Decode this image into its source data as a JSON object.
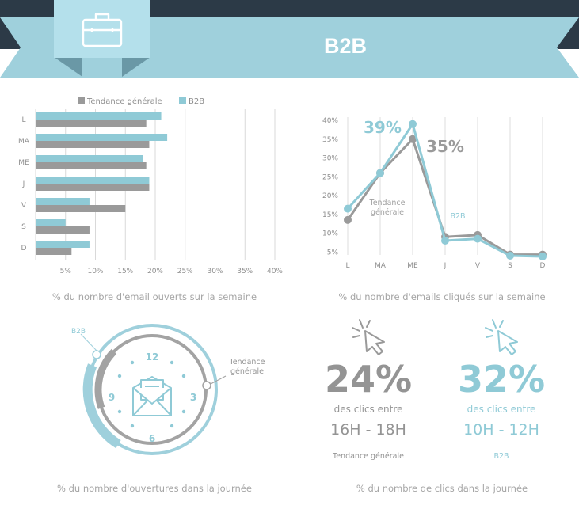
{
  "header": {
    "title": "B2B",
    "icon": "briefcase-icon",
    "colors": {
      "band": "#9fd0dc",
      "dark": "#2c3a47",
      "badge": "#b4e0eb",
      "fold": "#6a98a6"
    }
  },
  "colors": {
    "general": "#9a9a9a",
    "b2b": "#8fcad6"
  },
  "chart_data": [
    {
      "type": "bar",
      "orientation": "horizontal",
      "categories": [
        "L",
        "MA",
        "ME",
        "J",
        "V",
        "S",
        "D"
      ],
      "series": [
        {
          "name": "Tendance générale",
          "values": [
            18.5,
            19,
            18.5,
            19,
            15,
            9,
            6
          ]
        },
        {
          "name": "B2B",
          "values": [
            21,
            22,
            18,
            19,
            9,
            5,
            9
          ]
        }
      ],
      "xticks": [
        "5%",
        "10%",
        "15%",
        "20%",
        "25%",
        "30%",
        "35%",
        "40%"
      ],
      "xlim": [
        0,
        40
      ],
      "legend": "top",
      "grid": true,
      "caption": "% du nombre d'email ouverts sur la semaine"
    },
    {
      "type": "line",
      "categories": [
        "L",
        "MA",
        "ME",
        "J",
        "V",
        "S",
        "D"
      ],
      "series": [
        {
          "name": "Tendance générale",
          "values": [
            13.5,
            26,
            35,
            9,
            9.5,
            4.3,
            4.3
          ]
        },
        {
          "name": "B2B",
          "values": [
            16.5,
            26,
            39,
            8,
            8.5,
            4,
            3.8
          ]
        }
      ],
      "yticks": [
        "40%",
        "35%",
        "30%",
        "25%",
        "20%",
        "15%",
        "10%",
        "5%"
      ],
      "ylim": [
        5,
        40
      ],
      "grid": true,
      "annotations": {
        "b2b_peak": "39%",
        "general_peak": "35%",
        "general_label": "Tendance générale",
        "b2b_label": "B2B"
      },
      "caption": "% du nombre d'emails cliqués sur la semaine"
    }
  ],
  "clock": {
    "numbers": [
      "12",
      "3",
      "6",
      "9"
    ],
    "label_b2b": "B2B",
    "label_general": "Tendance générale",
    "icon": "envelope-icon",
    "caption": "% du nombre d'ouvertures dans la journée"
  },
  "clicks": {
    "general": {
      "percent": "24%",
      "text": "des clics entre",
      "range": "16H - 18H",
      "label": "Tendance générale"
    },
    "b2b": {
      "percent": "32%",
      "text": "des clics entre",
      "range": "10H - 12H",
      "label": "B2B"
    },
    "icon": "cursor-click-icon",
    "caption": "% du nombre de clics dans la journée"
  }
}
